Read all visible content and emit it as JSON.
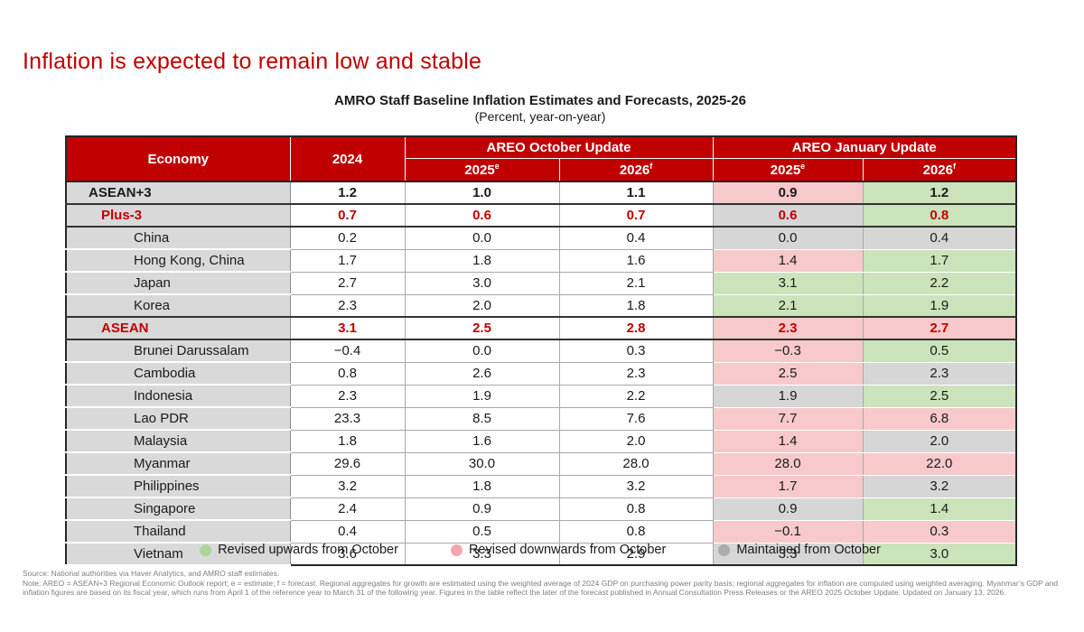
{
  "slide": {
    "title": "Inflation is expected to remain low and stable"
  },
  "colors": {
    "accent_red": "#C00000",
    "revised_up": "#CBE3BA",
    "revised_down": "#F8C9CB",
    "maintained": "#D6D6D6",
    "label_gray": "#D9D9D9"
  },
  "table": {
    "title": "AMRO Staff Baseline Inflation Estimates and Forecasts, 2025-26",
    "subtitle": "(Percent, year-on-year)",
    "header": {
      "economy": "Economy",
      "y2024": "2024",
      "october_group": "AREO October Update",
      "january_group": "AREO January Update",
      "oct_2025": {
        "label": "2025",
        "sup": "e"
      },
      "oct_2026": {
        "label": "2026",
        "sup": "f"
      },
      "jan_2025": {
        "label": "2025",
        "sup": "e"
      },
      "jan_2026": {
        "label": "2026",
        "sup": "f"
      }
    },
    "rows": [
      {
        "economy": "ASEAN+3",
        "level": "aggregate",
        "emphasis": "bold",
        "v2024": "1.2",
        "oct2025": "1.0",
        "oct2026": "1.1",
        "jan2025": "0.9",
        "jan2025_status": "down",
        "jan2026": "1.2",
        "jan2026_status": "up",
        "thick_below": true
      },
      {
        "economy": "Plus-3",
        "level": "subaggregate",
        "emphasis": "redbold",
        "v2024": "0.7",
        "oct2025": "0.6",
        "oct2026": "0.7",
        "jan2025": "0.6",
        "jan2025_status": "same",
        "jan2026": "0.8",
        "jan2026_status": "up",
        "thick_below": true
      },
      {
        "economy": "China",
        "level": "country",
        "emphasis": "",
        "v2024": "0.2",
        "oct2025": "0.0",
        "oct2026": "0.4",
        "jan2025": "0.0",
        "jan2025_status": "same",
        "jan2026": "0.4",
        "jan2026_status": "same",
        "thick_below": false
      },
      {
        "economy": "Hong Kong, China",
        "level": "country",
        "emphasis": "",
        "v2024": "1.7",
        "oct2025": "1.8",
        "oct2026": "1.6",
        "jan2025": "1.4",
        "jan2025_status": "down",
        "jan2026": "1.7",
        "jan2026_status": "up",
        "thick_below": false
      },
      {
        "economy": "Japan",
        "level": "country",
        "emphasis": "",
        "v2024": "2.7",
        "oct2025": "3.0",
        "oct2026": "2.1",
        "jan2025": "3.1",
        "jan2025_status": "up",
        "jan2026": "2.2",
        "jan2026_status": "up",
        "thick_below": false
      },
      {
        "economy": "Korea",
        "level": "country",
        "emphasis": "",
        "v2024": "2.3",
        "oct2025": "2.0",
        "oct2026": "1.8",
        "jan2025": "2.1",
        "jan2025_status": "up",
        "jan2026": "1.9",
        "jan2026_status": "up",
        "thick_below": true
      },
      {
        "economy": "ASEAN",
        "level": "subaggregate",
        "emphasis": "redbold",
        "v2024": "3.1",
        "oct2025": "2.5",
        "oct2026": "2.8",
        "jan2025": "2.3",
        "jan2025_status": "down",
        "jan2026": "2.7",
        "jan2026_status": "down",
        "thick_below": true
      },
      {
        "economy": "Brunei Darussalam",
        "level": "country",
        "emphasis": "",
        "v2024": "−0.4",
        "oct2025": "0.0",
        "oct2026": "0.3",
        "jan2025": "−0.3",
        "jan2025_status": "down",
        "jan2026": "0.5",
        "jan2026_status": "up",
        "thick_below": false
      },
      {
        "economy": "Cambodia",
        "level": "country",
        "emphasis": "",
        "v2024": "0.8",
        "oct2025": "2.6",
        "oct2026": "2.3",
        "jan2025": "2.5",
        "jan2025_status": "down",
        "jan2026": "2.3",
        "jan2026_status": "same",
        "thick_below": false
      },
      {
        "economy": "Indonesia",
        "level": "country",
        "emphasis": "",
        "v2024": "2.3",
        "oct2025": "1.9",
        "oct2026": "2.2",
        "jan2025": "1.9",
        "jan2025_status": "same",
        "jan2026": "2.5",
        "jan2026_status": "up",
        "thick_below": false
      },
      {
        "economy": "Lao PDR",
        "level": "country",
        "emphasis": "",
        "v2024": "23.3",
        "oct2025": "8.5",
        "oct2026": "7.6",
        "jan2025": "7.7",
        "jan2025_status": "down",
        "jan2026": "6.8",
        "jan2026_status": "down",
        "thick_below": false
      },
      {
        "economy": "Malaysia",
        "level": "country",
        "emphasis": "",
        "v2024": "1.8",
        "oct2025": "1.6",
        "oct2026": "2.0",
        "jan2025": "1.4",
        "jan2025_status": "down",
        "jan2026": "2.0",
        "jan2026_status": "same",
        "thick_below": false
      },
      {
        "economy": "Myanmar",
        "level": "country",
        "emphasis": "",
        "v2024": "29.6",
        "oct2025": "30.0",
        "oct2026": "28.0",
        "jan2025": "28.0",
        "jan2025_status": "down",
        "jan2026": "22.0",
        "jan2026_status": "down",
        "thick_below": false
      },
      {
        "economy": "Philippines",
        "level": "country",
        "emphasis": "",
        "v2024": "3.2",
        "oct2025": "1.8",
        "oct2026": "3.2",
        "jan2025": "1.7",
        "jan2025_status": "down",
        "jan2026": "3.2",
        "jan2026_status": "same",
        "thick_below": false
      },
      {
        "economy": "Singapore",
        "level": "country",
        "emphasis": "",
        "v2024": "2.4",
        "oct2025": "0.9",
        "oct2026": "0.8",
        "jan2025": "0.9",
        "jan2025_status": "same",
        "jan2026": "1.4",
        "jan2026_status": "up",
        "thick_below": false
      },
      {
        "economy": "Thailand",
        "level": "country",
        "emphasis": "",
        "v2024": "0.4",
        "oct2025": "0.5",
        "oct2026": "0.8",
        "jan2025": "−0.1",
        "jan2025_status": "down",
        "jan2026": "0.3",
        "jan2026_status": "down",
        "thick_below": false
      },
      {
        "economy": "Vietnam",
        "level": "country",
        "emphasis": "",
        "v2024": "3.6",
        "oct2025": "3.3",
        "oct2026": "2.9",
        "jan2025": "3.3",
        "jan2025_status": "same",
        "jan2026": "3.0",
        "jan2026_status": "up",
        "thick_below": false
      }
    ]
  },
  "legend": {
    "items": [
      {
        "status": "up",
        "label": "Revised upwards from October",
        "color": "#ACD59B"
      },
      {
        "status": "down",
        "label": "Revised downwards from October",
        "color": "#F3A6AB"
      },
      {
        "status": "same",
        "label": "Maintained from October",
        "color": "#ACACAC"
      }
    ]
  },
  "footnotes": {
    "source": "Source: National authorities via Haver Analytics, and AMRO staff estimates.",
    "note": "Note: AREO = ASEAN+3 Regional Economic Outlook report; e = estimate; f = forecast. Regional aggregates for growth are estimated using the weighted average of 2024 GDP on purchasing power parity basis; regional aggregates for inflation are computed using weighted averaging. Myanmar’s GDP and inflation figures are based on its fiscal year, which runs from April 1 of the reference year to March 31 of the following year. Figures in the table reflect the later of the forecast published in Annual Consultation Press Releases or the AREO 2025 October Update. Updated on January 13, 2026."
  }
}
